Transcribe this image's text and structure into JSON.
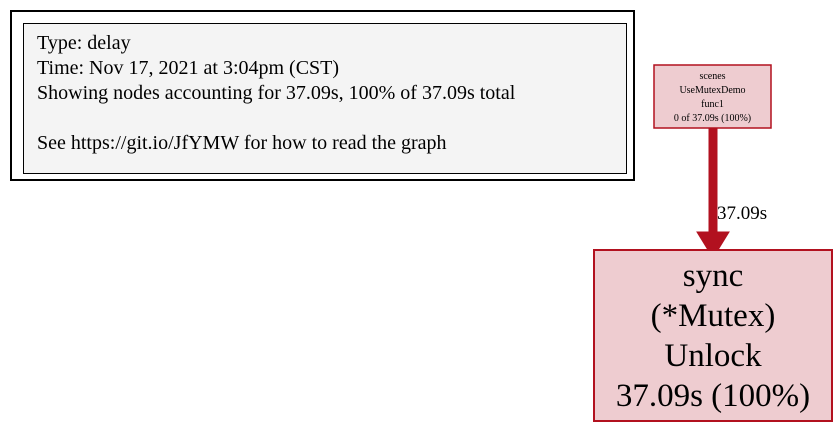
{
  "legend": {
    "type": "Type: delay",
    "time": "Time: Nov 17, 2021 at 3:04pm (CST)",
    "showing": "Showing nodes accounting for 37.09s, 100% of 37.09s total",
    "see": "See https://git.io/JfYMW for how to read the graph"
  },
  "nodes": {
    "caller": {
      "lines": [
        "scenes",
        "UseMutexDemo",
        "func1",
        "0 of 37.09s (100%)"
      ]
    },
    "callee": {
      "lines": [
        "sync",
        "(*Mutex)",
        "Unlock",
        "37.09s (100%)"
      ]
    }
  },
  "edge": {
    "label": "37.09s"
  },
  "colors": {
    "node_fill": "#eeccd0",
    "node_border": "#b2111f",
    "edge": "#b2111f",
    "legend_fill": "#f4f4f4"
  }
}
